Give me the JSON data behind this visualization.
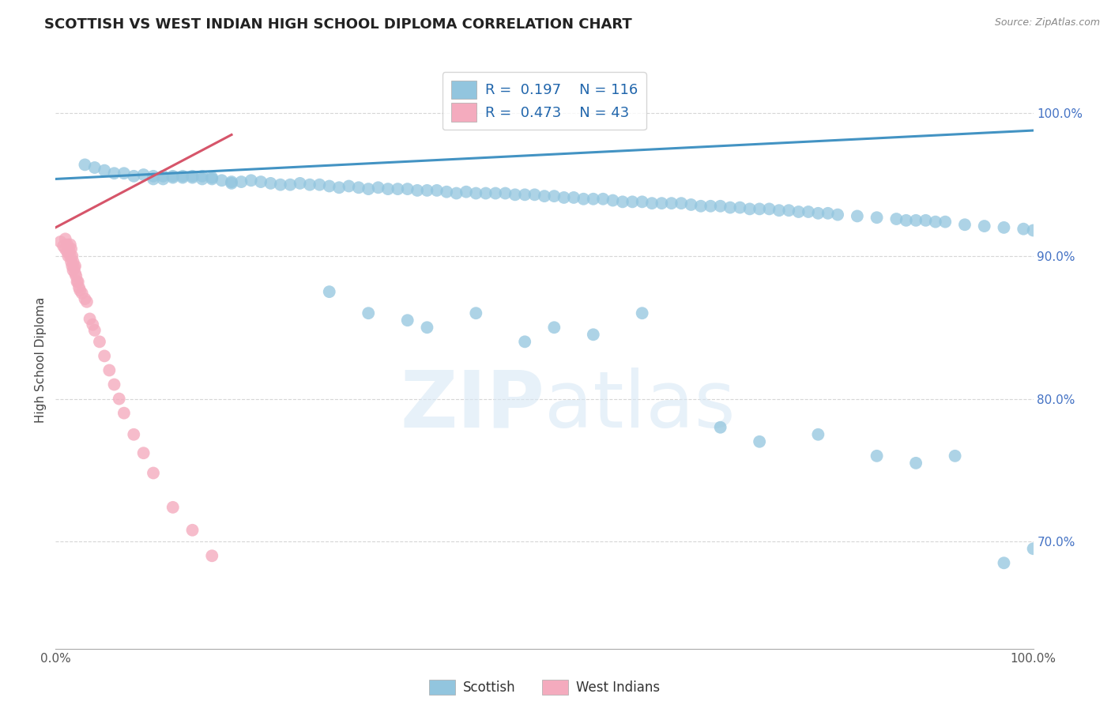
{
  "title": "SCOTTISH VS WEST INDIAN HIGH SCHOOL DIPLOMA CORRELATION CHART",
  "source": "Source: ZipAtlas.com",
  "ylabel": "High School Diploma",
  "xlim": [
    0.0,
    1.0
  ],
  "ylim": [
    0.625,
    1.03
  ],
  "yticks": [
    0.7,
    0.8,
    0.9,
    1.0
  ],
  "ytick_labels": [
    "70.0%",
    "80.0%",
    "90.0%",
    "100.0%"
  ],
  "xtick_labels": [
    "0.0%",
    "100.0%"
  ],
  "xticks": [
    0.0,
    1.0
  ],
  "r_scottish": 0.197,
  "n_scottish": 116,
  "r_westindian": 0.473,
  "n_westindian": 43,
  "blue_color": "#92C5DE",
  "pink_color": "#F4ABBE",
  "blue_line_color": "#4393C3",
  "pink_line_color": "#D6556A",
  "watermark": "ZIPatlas",
  "scottish_x": [
    0.03,
    0.04,
    0.05,
    0.06,
    0.07,
    0.08,
    0.09,
    0.1,
    0.1,
    0.11,
    0.11,
    0.12,
    0.12,
    0.13,
    0.13,
    0.14,
    0.14,
    0.15,
    0.15,
    0.16,
    0.16,
    0.17,
    0.18,
    0.18,
    0.19,
    0.2,
    0.21,
    0.22,
    0.23,
    0.24,
    0.25,
    0.26,
    0.27,
    0.28,
    0.29,
    0.3,
    0.31,
    0.32,
    0.33,
    0.34,
    0.35,
    0.36,
    0.37,
    0.38,
    0.39,
    0.4,
    0.41,
    0.42,
    0.43,
    0.44,
    0.45,
    0.46,
    0.47,
    0.48,
    0.49,
    0.5,
    0.51,
    0.52,
    0.53,
    0.54,
    0.55,
    0.56,
    0.57,
    0.58,
    0.59,
    0.6,
    0.61,
    0.62,
    0.63,
    0.64,
    0.65,
    0.66,
    0.67,
    0.68,
    0.69,
    0.7,
    0.71,
    0.72,
    0.73,
    0.74,
    0.75,
    0.76,
    0.77,
    0.78,
    0.79,
    0.8,
    0.82,
    0.84,
    0.86,
    0.87,
    0.88,
    0.89,
    0.9,
    0.91,
    0.93,
    0.95,
    0.97,
    0.99,
    1.0,
    0.28,
    0.32,
    0.36,
    0.38,
    0.43,
    0.48,
    0.51,
    0.55,
    0.6,
    0.68,
    0.72,
    0.78,
    0.84,
    0.88,
    0.92,
    0.97,
    1.0
  ],
  "scottish_y": [
    0.964,
    0.962,
    0.96,
    0.958,
    0.958,
    0.956,
    0.957,
    0.956,
    0.954,
    0.954,
    0.956,
    0.955,
    0.956,
    0.956,
    0.955,
    0.956,
    0.955,
    0.956,
    0.954,
    0.955,
    0.954,
    0.953,
    0.952,
    0.951,
    0.952,
    0.953,
    0.952,
    0.951,
    0.95,
    0.95,
    0.951,
    0.95,
    0.95,
    0.949,
    0.948,
    0.949,
    0.948,
    0.947,
    0.948,
    0.947,
    0.947,
    0.947,
    0.946,
    0.946,
    0.946,
    0.945,
    0.944,
    0.945,
    0.944,
    0.944,
    0.944,
    0.944,
    0.943,
    0.943,
    0.943,
    0.942,
    0.942,
    0.941,
    0.941,
    0.94,
    0.94,
    0.94,
    0.939,
    0.938,
    0.938,
    0.938,
    0.937,
    0.937,
    0.937,
    0.937,
    0.936,
    0.935,
    0.935,
    0.935,
    0.934,
    0.934,
    0.933,
    0.933,
    0.933,
    0.932,
    0.932,
    0.931,
    0.931,
    0.93,
    0.93,
    0.929,
    0.928,
    0.927,
    0.926,
    0.925,
    0.925,
    0.925,
    0.924,
    0.924,
    0.922,
    0.921,
    0.92,
    0.919,
    0.918,
    0.875,
    0.86,
    0.855,
    0.85,
    0.86,
    0.84,
    0.85,
    0.845,
    0.86,
    0.78,
    0.77,
    0.775,
    0.76,
    0.755,
    0.76,
    0.685,
    0.695
  ],
  "westindian_x": [
    0.005,
    0.008,
    0.01,
    0.01,
    0.012,
    0.012,
    0.013,
    0.013,
    0.014,
    0.015,
    0.015,
    0.016,
    0.016,
    0.017,
    0.017,
    0.018,
    0.018,
    0.019,
    0.02,
    0.02,
    0.021,
    0.022,
    0.023,
    0.024,
    0.025,
    0.027,
    0.03,
    0.032,
    0.035,
    0.038,
    0.04,
    0.045,
    0.05,
    0.055,
    0.06,
    0.065,
    0.07,
    0.08,
    0.09,
    0.1,
    0.12,
    0.14,
    0.16
  ],
  "westindian_y": [
    0.91,
    0.907,
    0.912,
    0.905,
    0.908,
    0.903,
    0.906,
    0.9,
    0.904,
    0.908,
    0.9,
    0.905,
    0.896,
    0.9,
    0.893,
    0.896,
    0.89,
    0.892,
    0.893,
    0.888,
    0.886,
    0.882,
    0.882,
    0.878,
    0.876,
    0.874,
    0.87,
    0.868,
    0.856,
    0.852,
    0.848,
    0.84,
    0.83,
    0.82,
    0.81,
    0.8,
    0.79,
    0.775,
    0.762,
    0.748,
    0.724,
    0.708,
    0.69
  ],
  "blue_line_x": [
    0.0,
    1.0
  ],
  "blue_line_y": [
    0.954,
    0.988
  ],
  "pink_line_x": [
    0.0,
    0.18
  ],
  "pink_line_y": [
    0.92,
    0.985
  ]
}
